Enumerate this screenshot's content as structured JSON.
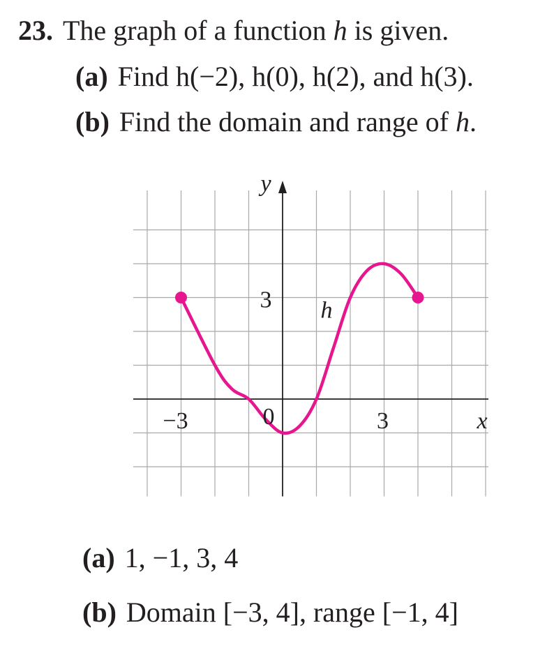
{
  "problem": {
    "number": "23.",
    "statement_pre": "The graph of a function ",
    "statement_var": "h",
    "statement_post": " is given.",
    "part_a": {
      "label": "(a)",
      "text": "Find h(−2), h(0), h(2), and h(3)."
    },
    "part_b": {
      "label": "(b)",
      "text_pre": "Find the domain and range of ",
      "text_var": "h",
      "text_post": "."
    }
  },
  "answers": {
    "part_a": {
      "label": "(a)",
      "text": "1, −1, 3, 4"
    },
    "part_b": {
      "label": "(b)",
      "text": "Domain [−3, 4], range [−1, 4]"
    }
  },
  "chart_data": {
    "type": "line",
    "xlabel": "x",
    "ylabel": "y",
    "function_label": "h",
    "xlim": [
      -4,
      6
    ],
    "ylim": [
      -3,
      6
    ],
    "grid": true,
    "x_tick_labels": [
      {
        "value": -3,
        "label": "−3"
      },
      {
        "value": 3,
        "label": "3"
      }
    ],
    "y_tick_labels": [
      {
        "value": 3,
        "label": "3"
      }
    ],
    "origin_label": "0",
    "curve_color": "#e6168f",
    "series": [
      {
        "x": [
          -3,
          -2,
          -1.5,
          -1,
          -0.5,
          0,
          0.5,
          1,
          1.5,
          2,
          2.5,
          3,
          3.5,
          4
        ],
        "y": [
          3,
          1,
          0.3,
          0,
          -0.6,
          -1,
          -0.8,
          0,
          1.5,
          3,
          3.8,
          4,
          3.7,
          3
        ]
      }
    ],
    "endpoints": [
      {
        "x": -3,
        "y": 3,
        "closed": true
      },
      {
        "x": 4,
        "y": 3,
        "closed": true
      }
    ]
  }
}
